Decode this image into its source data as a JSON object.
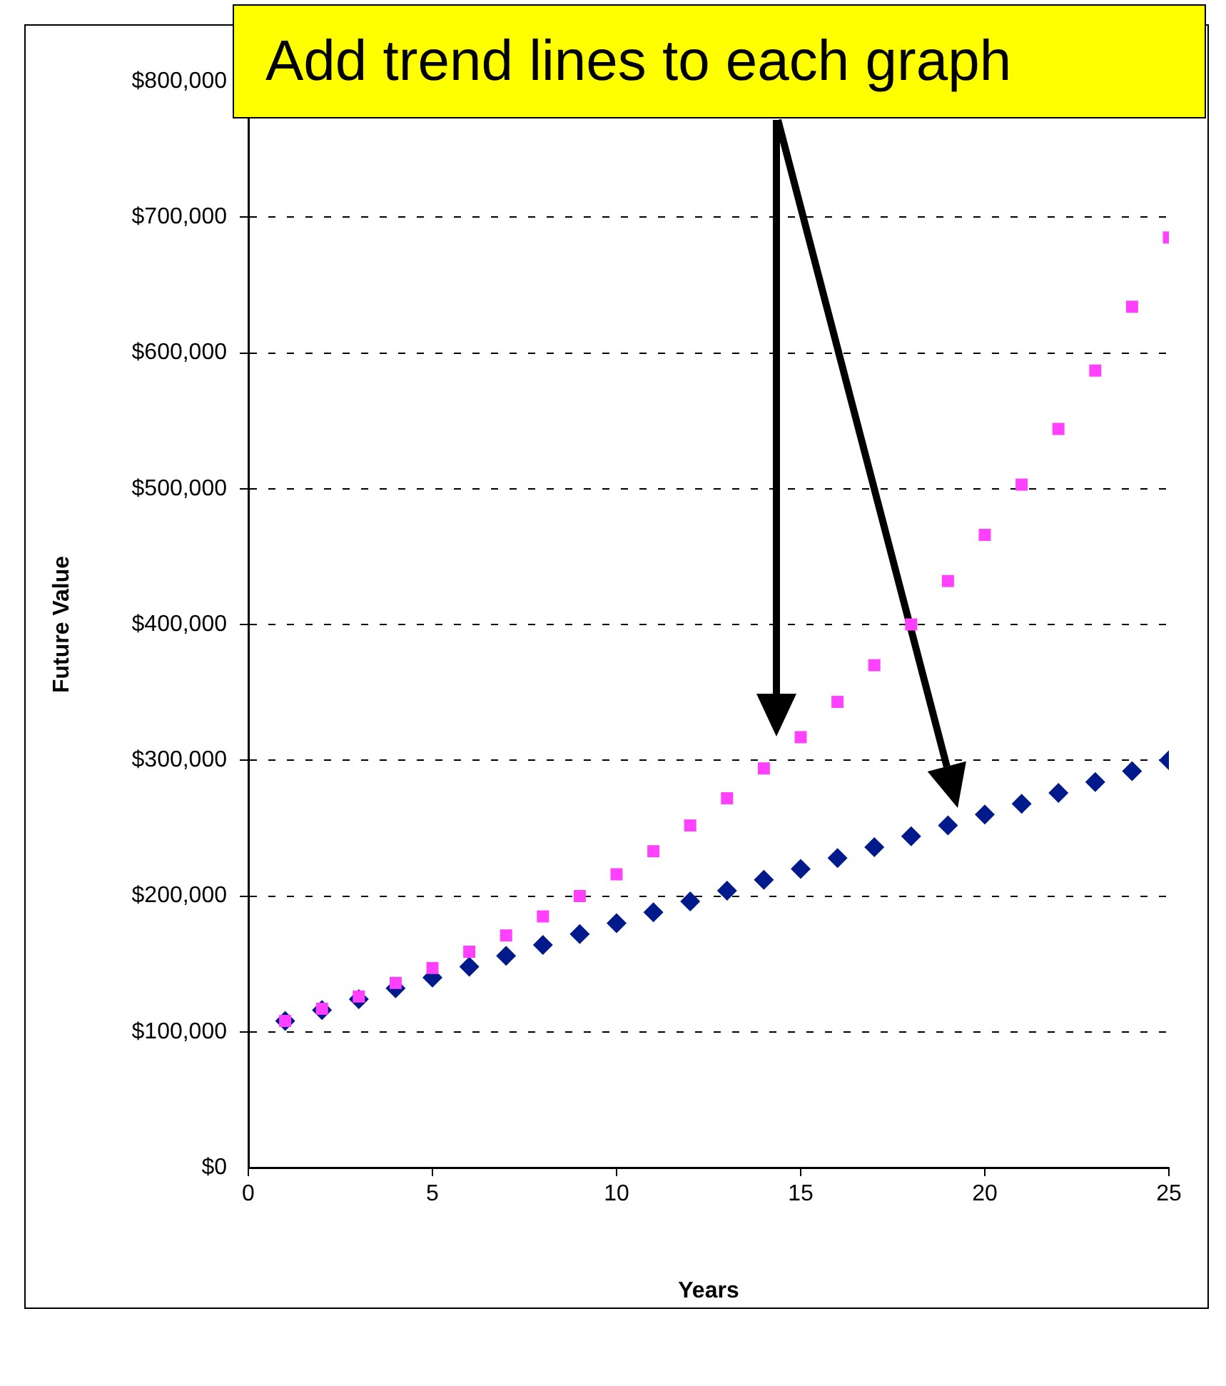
{
  "chart_data": {
    "type": "scatter",
    "xlabel": "Years",
    "ylabel": "Future Value",
    "annotations": [
      "Add trend lines to each graph"
    ],
    "x": [
      1,
      2,
      3,
      4,
      5,
      6,
      7,
      8,
      9,
      10,
      11,
      12,
      13,
      14,
      15,
      16,
      17,
      18,
      19,
      20,
      21,
      22,
      23,
      24,
      25
    ],
    "series": [
      {
        "color": "#001a8c",
        "marker": "diamond",
        "values": [
          108000,
          116000,
          124000,
          132000,
          140000,
          148000,
          156000,
          164000,
          172000,
          180000,
          188000,
          196000,
          204000,
          212000,
          220000,
          228000,
          236000,
          244000,
          252000,
          260000,
          268000,
          276000,
          284000,
          292000,
          300000
        ]
      },
      {
        "color": "#ff40ff",
        "marker": "square",
        "values": [
          108000,
          117000,
          126000,
          136000,
          147000,
          159000,
          171000,
          185000,
          200000,
          216000,
          233000,
          252000,
          272000,
          294000,
          317000,
          343000,
          370000,
          400000,
          432000,
          466000,
          503000,
          544000,
          587000,
          634000,
          685000
        ]
      }
    ],
    "xlim": [
      0,
      25
    ],
    "xticks": [
      0,
      5,
      10,
      15,
      20,
      25
    ],
    "ylim": [
      0,
      800000
    ],
    "yticks": [
      {
        "value": 0,
        "label": "$0"
      },
      {
        "value": 100000,
        "label": "$100,000"
      },
      {
        "value": 200000,
        "label": "$200,000"
      },
      {
        "value": 300000,
        "label": "$300,000"
      },
      {
        "value": 400000,
        "label": "$400,000"
      },
      {
        "value": 500000,
        "label": "$500,000"
      },
      {
        "value": 600000,
        "label": "$600,000"
      },
      {
        "value": 700000,
        "label": "$700,000"
      },
      {
        "value": 800000,
        "label": "$800,000"
      }
    ],
    "grid": "y",
    "legend": false
  }
}
